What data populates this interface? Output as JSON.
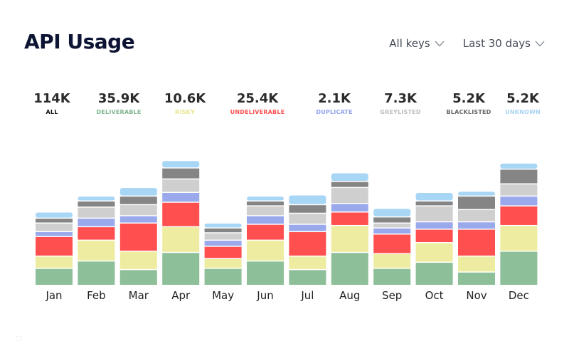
{
  "header": {
    "title": "API Usage",
    "keys_filter": "All keys",
    "range_filter": "Last 30 days"
  },
  "summary": [
    {
      "value": "114K",
      "label": "ALL",
      "color": "#111111"
    },
    {
      "value": "35.9K",
      "label": "DELIVERABLE",
      "color": "#7fb58f"
    },
    {
      "value": "10.6K",
      "label": "RISKY",
      "color": "#e8e58c"
    },
    {
      "value": "25.4K",
      "label": "UNDELIVERABLE",
      "color": "#ff5252"
    },
    {
      "value": "2.1K",
      "label": "DUPLICATE",
      "color": "#8fa2ee"
    },
    {
      "value": "7.3K",
      "label": "GREYLISTED",
      "color": "#bdbdbd"
    },
    {
      "value": "5.2K",
      "label": "BLACKLISTED",
      "color": "#666666"
    },
    {
      "value": "5.2K",
      "label": "UNKNOWN",
      "color": "#a7d4f2"
    }
  ],
  "chart_data": {
    "type": "bar",
    "stacked": true,
    "title": "API Usage",
    "categories": [
      "Jan",
      "Feb",
      "Mar",
      "Apr",
      "May",
      "Jun",
      "Jul",
      "Aug",
      "Sep",
      "Oct",
      "Nov",
      "Dec"
    ],
    "ylim": [
      0,
      100
    ],
    "series": [
      {
        "name": "DELIVERABLE",
        "color": "#8dbf99",
        "values": [
          13,
          19,
          12,
          26,
          13,
          19,
          12,
          26,
          13,
          18,
          10,
          27
        ]
      },
      {
        "name": "RISKY",
        "color": "#eeeca0",
        "values": [
          10,
          17,
          15,
          21,
          8,
          17,
          11,
          22,
          12,
          16,
          13,
          21
        ]
      },
      {
        "name": "UNDELIVERABLE",
        "color": "#ff4f4f",
        "values": [
          16,
          11,
          23,
          20,
          10,
          13,
          20,
          11,
          16,
          11,
          22,
          16
        ]
      },
      {
        "name": "DUPLICATE",
        "color": "#9aa8ec",
        "values": [
          4,
          7,
          6,
          8,
          5,
          7,
          6,
          7,
          5,
          6,
          6,
          8
        ]
      },
      {
        "name": "GREYLISTED",
        "color": "#cfcfcf",
        "values": [
          7,
          9,
          9,
          11,
          6,
          8,
          9,
          13,
          4,
          13,
          10,
          10
        ]
      },
      {
        "name": "BLACKLISTED",
        "color": "#858585",
        "values": [
          4,
          5,
          7,
          9,
          4,
          4,
          7,
          5,
          5,
          4,
          11,
          12
        ]
      },
      {
        "name": "UNKNOWN",
        "color": "#a8d6f5",
        "values": [
          5,
          4,
          7,
          6,
          4,
          4,
          8,
          7,
          7,
          7,
          4,
          5
        ]
      }
    ]
  }
}
